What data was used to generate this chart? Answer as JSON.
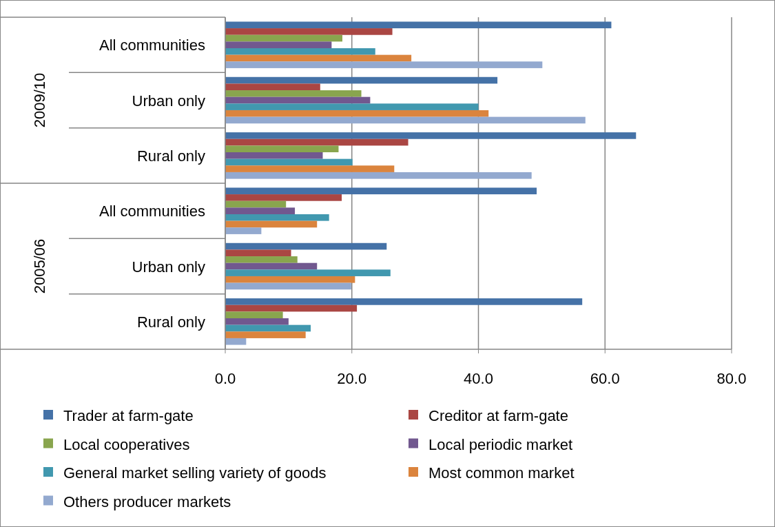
{
  "chart_data": {
    "type": "bar",
    "orientation": "horizontal",
    "categories": [
      "All communities",
      "Urban only",
      "Rural only",
      "All communities",
      "Urban only",
      "Rural only"
    ],
    "annotations": [
      "2009/10",
      "2005/06"
    ],
    "series": [
      {
        "name": "Trader at farm-gate",
        "color": "#4572a7",
        "values": [
          61.0,
          43.0,
          64.9,
          49.2,
          25.5,
          56.4
        ]
      },
      {
        "name": "Creditor at farm-gate",
        "color": "#aa4643",
        "values": [
          26.4,
          15.0,
          28.9,
          18.4,
          10.4,
          20.8
        ]
      },
      {
        "name": "Local cooperatives",
        "color": "#89a54e",
        "values": [
          18.5,
          21.5,
          17.9,
          9.6,
          11.4,
          9.1
        ]
      },
      {
        "name": "Local periodic market",
        "color": "#71588f",
        "values": [
          16.8,
          22.9,
          15.4,
          11.0,
          14.5,
          10.0
        ]
      },
      {
        "name": "General market selling variety of goods",
        "color": "#4198af",
        "values": [
          23.7,
          40.0,
          20.1,
          16.4,
          26.1,
          13.5
        ]
      },
      {
        "name": "Most common market",
        "color": "#db843d",
        "values": [
          29.4,
          41.6,
          26.7,
          14.5,
          20.5,
          12.7
        ]
      },
      {
        "name": "Others producer markets",
        "color": "#93a9cf",
        "values": [
          50.1,
          56.9,
          48.4,
          5.7,
          19.9,
          3.3
        ]
      }
    ],
    "xlim": [
      0,
      80
    ],
    "xticks": [
      {
        "value": 0,
        "label": "0.0"
      },
      {
        "value": 20,
        "label": "20.0"
      },
      {
        "value": 40,
        "label": "40.0"
      },
      {
        "value": 60,
        "label": "60.0"
      },
      {
        "value": 80,
        "label": "80.0"
      }
    ],
    "grid": "x",
    "legend": "bottom"
  }
}
